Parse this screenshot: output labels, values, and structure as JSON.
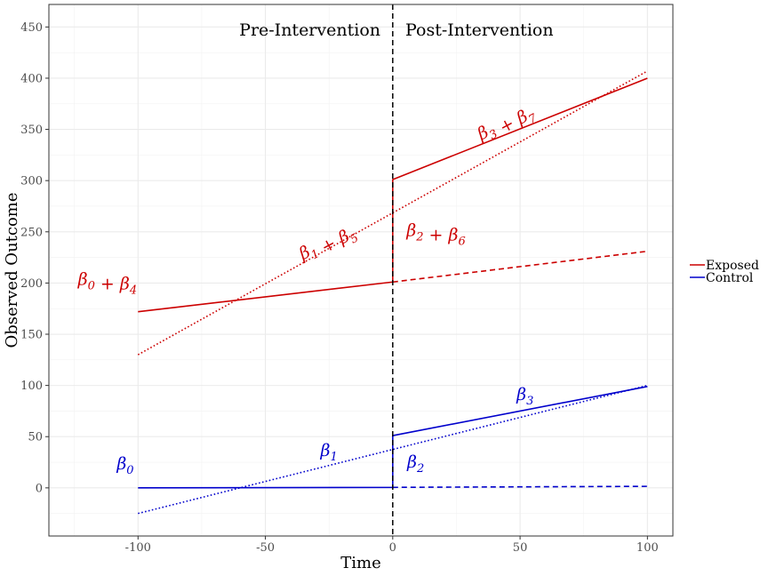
{
  "chart_data": {
    "type": "line",
    "xlabel": "Time",
    "ylabel": "Observed Outcome",
    "xlim": [
      -135,
      110
    ],
    "ylim": [
      -47,
      472
    ],
    "x_ticks": [
      -100,
      -50,
      0,
      50,
      100
    ],
    "y_ticks": [
      0,
      50,
      100,
      150,
      200,
      250,
      300,
      350,
      400,
      450
    ],
    "x_tick_labels": [
      "-100",
      "-50",
      "0",
      "50",
      "100"
    ],
    "y_tick_labels": [
      "0",
      "50",
      "100",
      "150",
      "200",
      "250",
      "300",
      "350",
      "400",
      "450"
    ],
    "grid": true,
    "legend_position": "right",
    "intervention_x": 0,
    "phase_labels": {
      "pre": "Pre-Intervention",
      "post": "Post-Intervention"
    },
    "series": [
      {
        "name": "Exposed",
        "color": "#cc0000",
        "style": "solid",
        "x": [
          -100,
          0,
          0,
          100
        ],
        "y": [
          172,
          201,
          301,
          400
        ]
      },
      {
        "name": "",
        "color": "#cc0000",
        "style": "dashed",
        "x": [
          0,
          100
        ],
        "y": [
          201,
          231
        ]
      },
      {
        "name": "",
        "color": "#cc0000",
        "style": "dotted",
        "x": [
          -100,
          100
        ],
        "y": [
          130,
          407
        ]
      },
      {
        "name": "Control",
        "color": "#0000cc",
        "style": "solid",
        "x": [
          -100,
          0,
          0,
          100
        ],
        "y": [
          0,
          0.5,
          51,
          99
        ]
      },
      {
        "name": "",
        "color": "#0000cc",
        "style": "dashed",
        "x": [
          0,
          100
        ],
        "y": [
          0.5,
          1.5
        ]
      },
      {
        "name": "",
        "color": "#0000cc",
        "style": "dotted",
        "x": [
          -100,
          100
        ],
        "y": [
          -25,
          100
        ]
      }
    ],
    "legend": [
      {
        "label": "Exposed",
        "color": "#cc0000"
      },
      {
        "label": "Control",
        "color": "#0000cc"
      }
    ],
    "annotations": [
      {
        "text": "β0 + β4",
        "x": -112,
        "y": 198,
        "color": "#cc0000",
        "angle": 0
      },
      {
        "text": "β1 + β5",
        "x": -25,
        "y": 236,
        "color": "#cc0000",
        "angle": -28
      },
      {
        "text": "β2 + β6",
        "x": 17,
        "y": 246,
        "color": "#cc0000",
        "angle": 0
      },
      {
        "text": "β3 + β7",
        "x": 45,
        "y": 353,
        "color": "#cc0000",
        "angle": -28
      },
      {
        "text": "β0",
        "x": -105,
        "y": 18,
        "color": "#0000cc",
        "angle": 0
      },
      {
        "text": "β1",
        "x": -25,
        "y": 31,
        "color": "#0000cc",
        "angle": 0
      },
      {
        "text": "β2",
        "x": 9,
        "y": 20,
        "color": "#0000cc",
        "angle": 0
      },
      {
        "text": "β3",
        "x": 52,
        "y": 86,
        "color": "#0000cc",
        "angle": 0
      }
    ]
  }
}
